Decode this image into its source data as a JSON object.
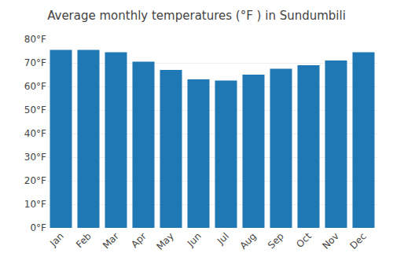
{
  "chart_data": {
    "type": "bar",
    "title": "Average monthly temperatures (°F ) in Sundumbili",
    "categories": [
      "Jan",
      "Feb",
      "Mar",
      "Apr",
      "May",
      "Jun",
      "Jul",
      "Aug",
      "Sep",
      "Oct",
      "Nov",
      "Dec"
    ],
    "values": [
      75.5,
      75.5,
      74.5,
      70.5,
      67,
      63,
      62.5,
      65,
      67.5,
      69,
      71,
      74.5
    ],
    "ylim": [
      0,
      80
    ],
    "yticks": [
      {
        "value": 0,
        "label": "0°F"
      },
      {
        "value": 10,
        "label": "10°F"
      },
      {
        "value": 20,
        "label": "20°F"
      },
      {
        "value": 30,
        "label": "30°F"
      },
      {
        "value": 40,
        "label": "40°F"
      },
      {
        "value": 50,
        "label": "50°F"
      },
      {
        "value": 60,
        "label": "60°F"
      },
      {
        "value": 70,
        "label": "70°F"
      },
      {
        "value": 80,
        "label": "80°F"
      }
    ],
    "grid": true
  }
}
